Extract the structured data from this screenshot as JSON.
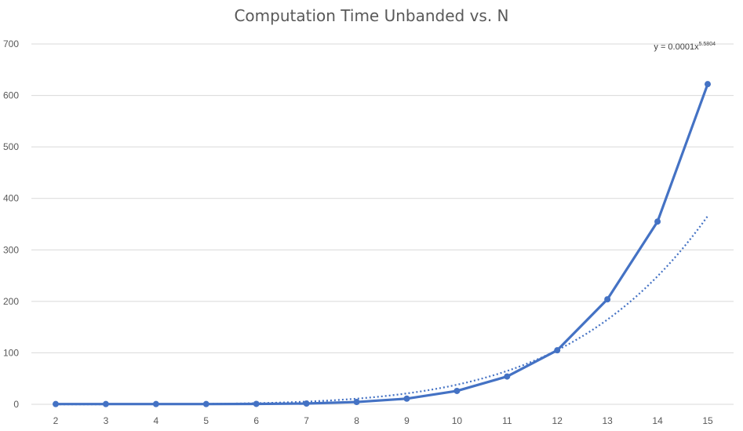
{
  "chart_data": {
    "type": "line",
    "title": "Computation Time Unbanded vs. N",
    "xlabel": "",
    "ylabel": "",
    "categories": [
      2,
      3,
      4,
      5,
      6,
      7,
      8,
      9,
      10,
      11,
      12,
      13,
      14,
      15
    ],
    "series": [
      {
        "values": [
          0.5,
          0.5,
          0.5,
          0.5,
          0.8,
          1.5,
          4.5,
          11,
          26,
          54,
          105,
          204,
          355,
          622
        ]
      }
    ],
    "trendline": {
      "type": "power",
      "coefficient": 0.0001,
      "exponent": 5.5804,
      "equation_prefix": "y = 0.0001x",
      "equation_exponent": "5.5804",
      "style": "dotted"
    },
    "ylim": [
      0,
      700
    ],
    "yticks": [
      0,
      100,
      200,
      300,
      400,
      500,
      600,
      700
    ],
    "grid": true,
    "legend": "none",
    "colors": {
      "series": "#4472C4",
      "grid": "#d9d9d9",
      "text": "#595959"
    }
  }
}
